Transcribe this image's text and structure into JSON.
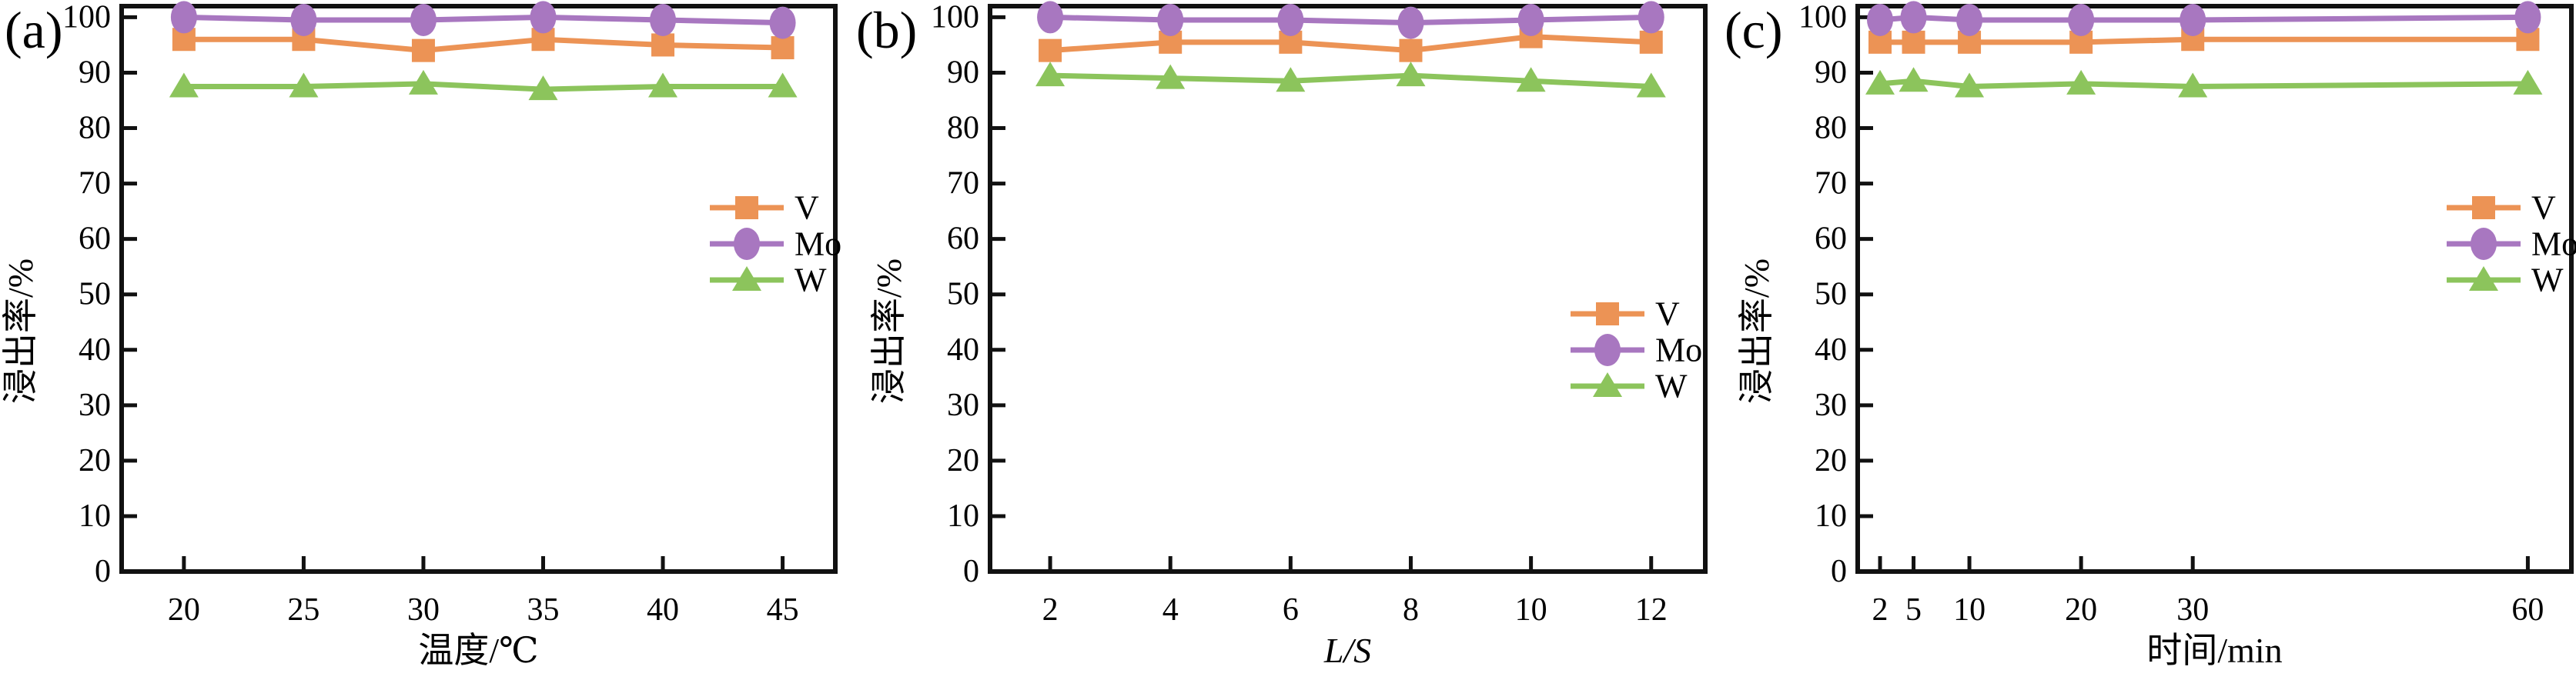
{
  "figure": {
    "background": "#ffffff",
    "axis_color": "#111111",
    "text_color": "#000000",
    "ylabel": "浸出率/%",
    "yticks": [
      0,
      10,
      20,
      30,
      40,
      50,
      60,
      70,
      80,
      90,
      100
    ],
    "legend_labels": [
      "V",
      "Mo",
      "W"
    ],
    "series_colors": {
      "V": "#EC9355",
      "Mo": "#A877C0",
      "W": "#8CC45C"
    }
  },
  "chart_data": [
    {
      "type": "line",
      "panel_label": "(a)",
      "xlabel": "温度/℃",
      "xlabel_italic": false,
      "ylabel": "浸出率/%",
      "x": [
        20,
        25,
        30,
        35,
        40,
        45
      ],
      "xticks": [
        20,
        25,
        30,
        35,
        40,
        45
      ],
      "xlim": [
        17.4,
        47.2
      ],
      "ylim": [
        0,
        102
      ],
      "yticks": [
        0,
        10,
        20,
        30,
        40,
        50,
        60,
        70,
        80,
        90,
        100
      ],
      "grid": false,
      "legend_position": "center-right",
      "series": [
        {
          "name": "V",
          "marker": "square",
          "color": "#EC9355",
          "values": [
            96,
            96,
            94,
            96,
            95,
            94.5
          ]
        },
        {
          "name": "Mo",
          "marker": "circle",
          "color": "#A877C0",
          "values": [
            100,
            99.5,
            99.5,
            100,
            99.5,
            99
          ]
        },
        {
          "name": "W",
          "marker": "triangle",
          "color": "#8CC45C",
          "values": [
            87.5,
            87.5,
            88,
            87,
            87.5,
            87.5
          ]
        }
      ]
    },
    {
      "type": "line",
      "panel_label": "(b)",
      "xlabel": "L/S",
      "xlabel_italic": true,
      "ylabel": "浸出率/%",
      "x": [
        2,
        4,
        6,
        8,
        10,
        12
      ],
      "xticks": [
        2,
        4,
        6,
        8,
        10,
        12
      ],
      "xlim": [
        1,
        12.9
      ],
      "ylim": [
        0,
        102
      ],
      "yticks": [
        0,
        10,
        20,
        30,
        40,
        50,
        60,
        70,
        80,
        90,
        100
      ],
      "grid": false,
      "legend_position": "lower-right",
      "series": [
        {
          "name": "V",
          "marker": "square",
          "color": "#EC9355",
          "values": [
            94,
            95.5,
            95.5,
            94,
            96.5,
            95.5
          ]
        },
        {
          "name": "Mo",
          "marker": "circle",
          "color": "#A877C0",
          "values": [
            100,
            99.5,
            99.5,
            99,
            99.5,
            100
          ]
        },
        {
          "name": "W",
          "marker": "triangle",
          "color": "#8CC45C",
          "values": [
            89.5,
            89,
            88.5,
            89.5,
            88.5,
            87.5
          ]
        }
      ]
    },
    {
      "type": "line",
      "panel_label": "(c)",
      "xlabel": "时间/min",
      "xlabel_italic": false,
      "ylabel": "浸出率/%",
      "x": [
        2,
        5,
        10,
        20,
        30,
        60
      ],
      "xticks": [
        2,
        5,
        10,
        20,
        30,
        60
      ],
      "xlim": [
        0,
        63.9
      ],
      "ylim": [
        0,
        102
      ],
      "yticks": [
        0,
        10,
        20,
        30,
        40,
        50,
        60,
        70,
        80,
        90,
        100
      ],
      "grid": false,
      "legend_position": "center-right",
      "series": [
        {
          "name": "V",
          "marker": "square",
          "color": "#EC9355",
          "values": [
            95.5,
            95.5,
            95.5,
            95.5,
            96,
            96
          ]
        },
        {
          "name": "Mo",
          "marker": "circle",
          "color": "#A877C0",
          "values": [
            99.5,
            100,
            99.5,
            99.5,
            99.5,
            100
          ]
        },
        {
          "name": "W",
          "marker": "triangle",
          "color": "#8CC45C",
          "values": [
            88,
            88.5,
            87.5,
            88,
            87.5,
            88
          ]
        }
      ]
    }
  ]
}
